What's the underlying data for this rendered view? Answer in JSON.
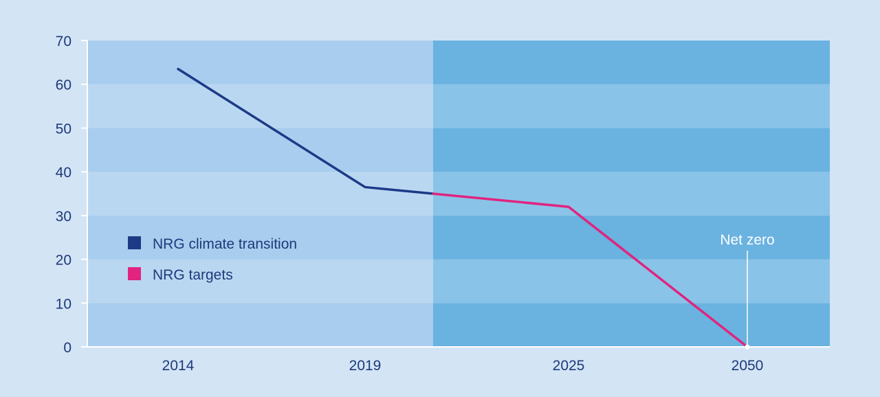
{
  "colors": {
    "background": "#d3e4f5",
    "history_band_a": "#a8cdee",
    "history_band_b": "#b9d7f1",
    "target_band_a": "#6ab2e0",
    "target_band_b": "#8ac3e8",
    "climate_transition": "#1c3a86",
    "targets": "#e0247f",
    "axis_text": "#1d3a7a",
    "annotation": "#ffffff"
  },
  "chart_data": {
    "type": "line",
    "x": [
      "2014",
      "2019",
      "2025",
      "2050"
    ],
    "ylim": [
      0,
      70
    ],
    "yticks": [
      0,
      10,
      20,
      30,
      40,
      50,
      60,
      70
    ],
    "grid": true,
    "legend_position": "middle-left",
    "shaded_region_start": "between 2019 and 2025",
    "series": [
      {
        "name": "NRG climate transition",
        "color": "#1c3a86",
        "points": [
          {
            "x": "2014",
            "y": 63.5
          },
          {
            "x": "2019",
            "y": 36.5
          },
          {
            "x": "between 2019 and 2025",
            "y": 35
          }
        ]
      },
      {
        "name": "NRG targets",
        "color": "#e0247f",
        "points": [
          {
            "x": "between 2019 and 2025",
            "y": 35
          },
          {
            "x": "2025",
            "y": 32
          },
          {
            "x": "2050",
            "y": 0
          }
        ]
      }
    ],
    "annotations": [
      {
        "text": "Net zero",
        "x": "2050",
        "y": 0
      }
    ]
  }
}
